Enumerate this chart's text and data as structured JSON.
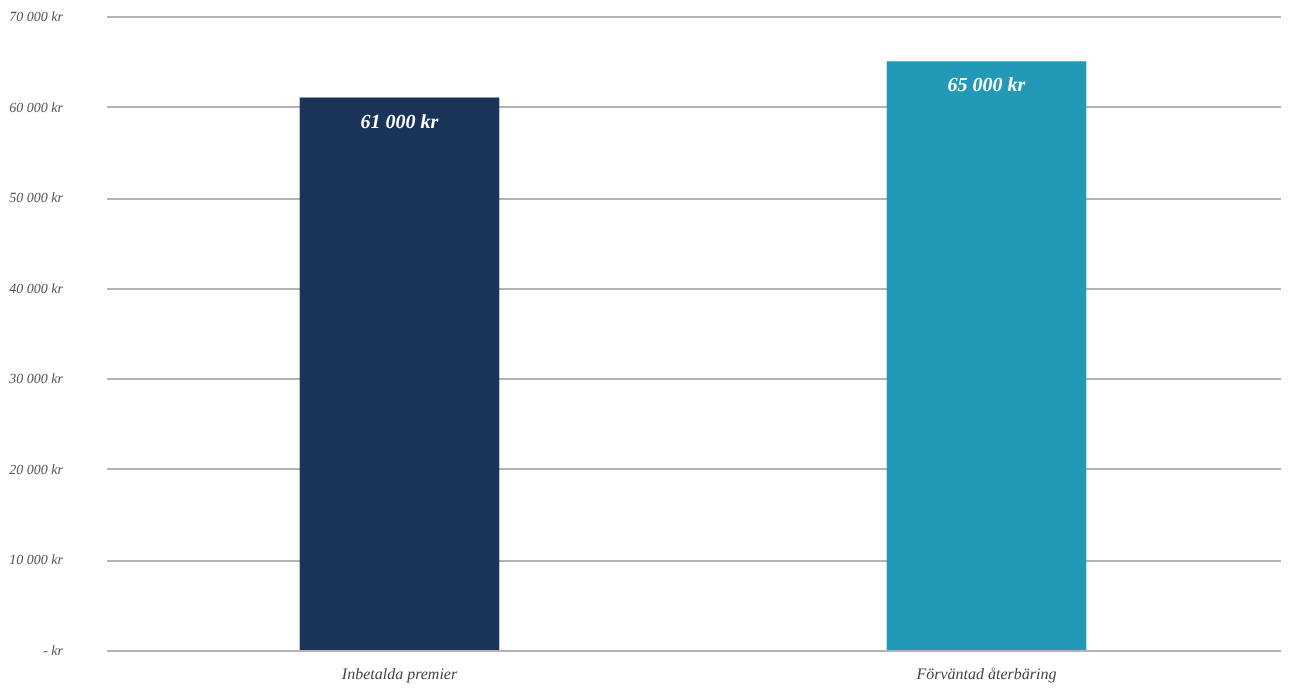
{
  "chart_data": {
    "type": "bar",
    "categories": [
      "Inbetalda premier",
      "Förväntad återbäring"
    ],
    "values": [
      61000,
      65000
    ],
    "colors": [
      "#1a3459",
      "#2299b7"
    ],
    "value_labels": [
      "61 000 kr",
      "65 000 kr"
    ],
    "ylim": [
      0,
      70000
    ],
    "yticks": [
      {
        "value": 0,
        "label": "-  kr"
      },
      {
        "value": 10000,
        "label": "10 000 kr"
      },
      {
        "value": 20000,
        "label": "20 000 kr"
      },
      {
        "value": 30000,
        "label": "30 000 kr"
      },
      {
        "value": 40000,
        "label": "40 000 kr"
      },
      {
        "value": 50000,
        "label": "50 000 kr"
      },
      {
        "value": 60000,
        "label": "60 000 kr"
      },
      {
        "value": 70000,
        "label": "70 000 kr"
      }
    ],
    "grid": "y"
  }
}
